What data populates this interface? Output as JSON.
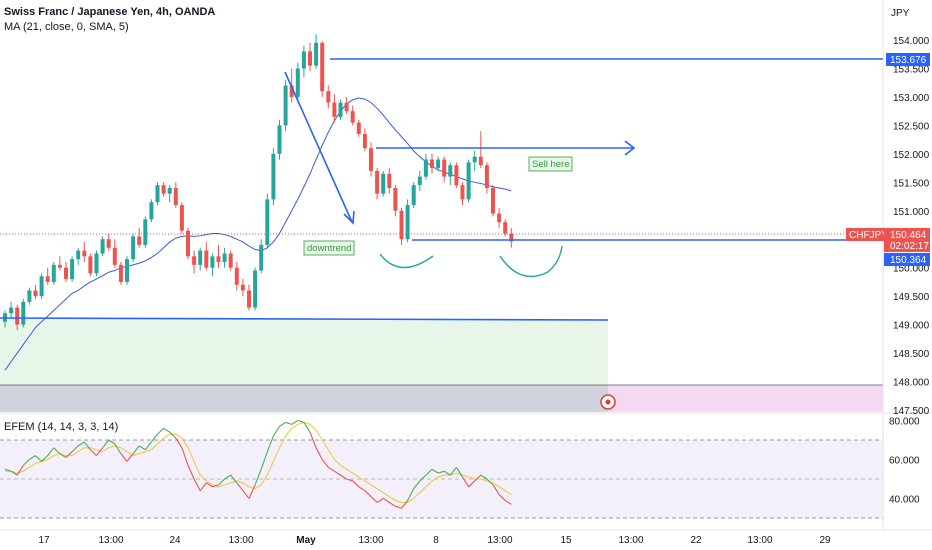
{
  "header": {
    "title": "Swiss Franc / Japanese Yen, 4h, OANDA",
    "ma_label": "MA (21, close, 0, SMA, 5)",
    "oscillator_label": "EFEM (14, 14, 3, 3, 14)"
  },
  "currency_label": "JPY",
  "symbol_tag": "CHFJPY",
  "countdown": "02:02:17",
  "price_tags": {
    "resistance": "153.676",
    "last": "150.464",
    "support": "150.364"
  },
  "annotations": {
    "downtrend": "downtrend",
    "sell": "Sell here"
  },
  "colors": {
    "up": "#26a69a",
    "down": "#ef5350",
    "line": "#2962ff",
    "ma": "#3b5bdb",
    "zone": "#e8f5e9"
  },
  "chart_data": {
    "type": "candlestick",
    "symbol": "CHFJPY",
    "timeframe": "4h",
    "y_axis": {
      "ticks": [
        "154.000",
        "153.500",
        "153.000",
        "152.500",
        "152.000",
        "151.500",
        "151.000",
        "150.500",
        "150.000",
        "149.500",
        "149.000",
        "148.500",
        "148.000",
        "147.500"
      ],
      "range": [
        147.2,
        154.35
      ]
    },
    "oscillator_axis": {
      "ticks": [
        "80.000",
        "60.000",
        "40.000"
      ],
      "range": [
        33,
        83
      ],
      "levels": [
        70,
        50,
        30
      ]
    },
    "x_axis": {
      "ticks": [
        "17",
        "13:00",
        "24",
        "13:00",
        "May",
        "13:00",
        "8",
        "13:00",
        "15",
        "13:00",
        "22",
        "13:00",
        "29"
      ]
    },
    "candles": [
      [
        149.05,
        149.25,
        148.95,
        149.2
      ],
      [
        149.2,
        149.4,
        149.1,
        149.3
      ],
      [
        149.3,
        149.35,
        148.9,
        149.0
      ],
      [
        149.0,
        149.45,
        148.95,
        149.4
      ],
      [
        149.4,
        149.65,
        149.35,
        149.6
      ],
      [
        149.6,
        149.7,
        149.45,
        149.5
      ],
      [
        149.5,
        149.9,
        149.45,
        149.85
      ],
      [
        149.85,
        150.0,
        149.7,
        149.75
      ],
      [
        149.75,
        150.1,
        149.7,
        150.05
      ],
      [
        150.05,
        150.2,
        149.95,
        150.0
      ],
      [
        150.0,
        150.1,
        149.75,
        149.8
      ],
      [
        149.8,
        150.2,
        149.75,
        150.15
      ],
      [
        150.15,
        150.35,
        150.05,
        150.3
      ],
      [
        150.3,
        150.45,
        150.1,
        150.2
      ],
      [
        150.2,
        150.25,
        149.85,
        149.9
      ],
      [
        149.9,
        150.3,
        149.85,
        150.25
      ],
      [
        150.25,
        150.55,
        150.2,
        150.5
      ],
      [
        150.5,
        150.6,
        150.3,
        150.35
      ],
      [
        150.35,
        150.5,
        150.0,
        150.05
      ],
      [
        150.05,
        150.1,
        149.7,
        149.75
      ],
      [
        149.75,
        150.2,
        149.7,
        150.15
      ],
      [
        150.15,
        150.6,
        150.1,
        150.55
      ],
      [
        150.55,
        150.7,
        150.35,
        150.4
      ],
      [
        150.4,
        150.9,
        150.35,
        150.85
      ],
      [
        150.85,
        151.2,
        150.8,
        151.15
      ],
      [
        151.15,
        151.5,
        151.1,
        151.45
      ],
      [
        151.45,
        151.5,
        151.25,
        151.3
      ],
      [
        151.3,
        151.45,
        151.15,
        151.4
      ],
      [
        151.4,
        151.5,
        151.05,
        151.1
      ],
      [
        151.1,
        151.15,
        150.6,
        150.65
      ],
      [
        150.65,
        150.7,
        150.15,
        150.2
      ],
      [
        150.2,
        150.3,
        149.9,
        150.05
      ],
      [
        150.05,
        150.35,
        149.95,
        150.3
      ],
      [
        150.3,
        150.45,
        149.95,
        150.0
      ],
      [
        150.0,
        150.25,
        149.85,
        150.2
      ],
      [
        150.2,
        150.4,
        150.0,
        150.1
      ],
      [
        150.1,
        150.35,
        150.0,
        150.25
      ],
      [
        150.25,
        150.3,
        149.95,
        150.0
      ],
      [
        150.0,
        150.1,
        149.6,
        149.7
      ],
      [
        149.7,
        149.8,
        149.5,
        149.6
      ],
      [
        149.6,
        149.7,
        149.25,
        149.3
      ],
      [
        149.3,
        150.0,
        149.25,
        149.95
      ],
      [
        149.95,
        150.5,
        149.9,
        150.4
      ],
      [
        150.4,
        151.3,
        150.35,
        151.2
      ],
      [
        151.2,
        152.1,
        151.1,
        152.0
      ],
      [
        152.0,
        152.6,
        151.9,
        152.5
      ],
      [
        152.5,
        153.3,
        152.4,
        153.2
      ],
      [
        153.2,
        153.5,
        152.9,
        153.0
      ],
      [
        153.0,
        153.6,
        152.95,
        153.5
      ],
      [
        153.5,
        153.9,
        153.35,
        153.8
      ],
      [
        153.8,
        153.95,
        153.45,
        153.55
      ],
      [
        153.55,
        154.1,
        153.5,
        153.95
      ],
      [
        153.95,
        153.98,
        153.0,
        153.1
      ],
      [
        153.1,
        153.2,
        152.8,
        152.9
      ],
      [
        152.9,
        153.05,
        152.55,
        152.65
      ],
      [
        152.65,
        152.95,
        152.6,
        152.9
      ],
      [
        152.9,
        153.0,
        152.7,
        152.75
      ],
      [
        152.75,
        152.85,
        152.5,
        152.55
      ],
      [
        152.55,
        152.6,
        152.3,
        152.35
      ],
      [
        152.35,
        152.45,
        152.05,
        152.1
      ],
      [
        152.1,
        152.2,
        151.6,
        151.7
      ],
      [
        151.7,
        151.75,
        151.2,
        151.3
      ],
      [
        151.3,
        151.7,
        151.25,
        151.65
      ],
      [
        151.65,
        151.75,
        151.3,
        151.4
      ],
      [
        151.4,
        151.45,
        150.9,
        151.0
      ],
      [
        151.0,
        151.05,
        150.4,
        150.5
      ],
      [
        150.5,
        151.2,
        150.45,
        151.1
      ],
      [
        151.1,
        151.5,
        151.05,
        151.45
      ],
      [
        151.45,
        151.7,
        151.35,
        151.6
      ],
      [
        151.6,
        152.0,
        151.55,
        151.9
      ],
      [
        151.9,
        152.0,
        151.65,
        151.75
      ],
      [
        151.75,
        151.95,
        151.7,
        151.9
      ],
      [
        151.9,
        151.95,
        151.5,
        151.6
      ],
      [
        151.6,
        151.85,
        151.45,
        151.8
      ],
      [
        151.8,
        151.85,
        151.4,
        151.45
      ],
      [
        151.45,
        151.5,
        151.1,
        151.2
      ],
      [
        151.2,
        151.9,
        151.15,
        151.85
      ],
      [
        151.85,
        152.05,
        151.7,
        151.95
      ],
      [
        151.95,
        152.4,
        151.75,
        151.8
      ],
      [
        151.8,
        151.85,
        151.3,
        151.4
      ],
      [
        151.4,
        151.45,
        150.9,
        150.95
      ],
      [
        150.95,
        151.05,
        150.7,
        150.8
      ],
      [
        150.8,
        150.85,
        150.55,
        150.6
      ],
      [
        150.6,
        150.7,
        150.35,
        150.46
      ]
    ],
    "ma": [
      148.2,
      148.35,
      148.5,
      148.65,
      148.8,
      148.95,
      149.05,
      149.15,
      149.25,
      149.35,
      149.45,
      149.55,
      149.6,
      149.68,
      149.75,
      149.8,
      149.86,
      149.92,
      149.95,
      150.0,
      150.02,
      150.05,
      150.08,
      150.12,
      150.18,
      150.25,
      150.35,
      150.45,
      150.52,
      150.55,
      150.56,
      150.55,
      150.56,
      150.58,
      150.6,
      150.6,
      150.58,
      150.55,
      150.5,
      150.45,
      150.38,
      150.32,
      150.3,
      150.35,
      150.45,
      150.6,
      150.8,
      151.0,
      151.2,
      151.42,
      151.65,
      151.9,
      152.15,
      152.38,
      152.58,
      152.75,
      152.88,
      152.95,
      152.98,
      152.96,
      152.9,
      152.8,
      152.68,
      152.55,
      152.42,
      152.3,
      152.18,
      152.05,
      151.95,
      151.86,
      151.78,
      151.72,
      151.68,
      151.64,
      151.6,
      151.56,
      151.52,
      151.5,
      151.48,
      151.45,
      151.42,
      151.4,
      151.38,
      151.35
    ],
    "oscillator_fast": [
      55,
      54,
      52,
      57,
      60,
      62,
      59,
      62,
      66,
      63,
      61,
      64,
      67,
      69,
      65,
      62,
      66,
      70,
      68,
      63,
      59,
      63,
      67,
      65,
      69,
      73,
      76,
      74,
      71,
      66,
      57,
      50,
      44,
      48,
      46,
      47,
      50,
      52,
      48,
      44,
      40,
      47,
      55,
      64,
      72,
      77,
      79,
      78,
      80,
      79,
      74,
      66,
      60,
      56,
      54,
      52,
      50,
      49,
      46,
      44,
      41,
      38,
      40,
      38,
      36,
      35,
      39,
      45,
      49,
      52,
      55,
      53,
      54,
      52,
      56,
      51,
      46,
      49,
      52,
      50,
      47,
      42,
      39,
      37
    ],
    "oscillator_slow": [
      54,
      54,
      53,
      54,
      56,
      58,
      59,
      60,
      62,
      63,
      62,
      62,
      64,
      66,
      66,
      65,
      64,
      66,
      67,
      66,
      64,
      62,
      63,
      64,
      65,
      68,
      71,
      73,
      73,
      71,
      66,
      59,
      52,
      49,
      47,
      46,
      47,
      48,
      49,
      48,
      46,
      45,
      47,
      52,
      59,
      66,
      72,
      76,
      78,
      79,
      78,
      75,
      70,
      65,
      60,
      57,
      55,
      53,
      51,
      49,
      47,
      45,
      43,
      41,
      39,
      38,
      38,
      40,
      43,
      46,
      49,
      51,
      52,
      52,
      53,
      52,
      51,
      50,
      50,
      49,
      48,
      46,
      44,
      42
    ],
    "levels": {
      "resistance": 153.676,
      "neckline": 152.05,
      "support": 150.364,
      "zone_top": 148.95
    }
  }
}
